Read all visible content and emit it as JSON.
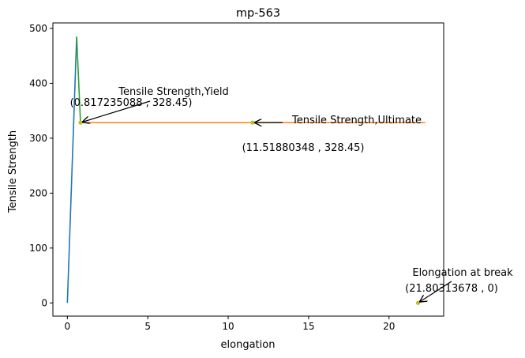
{
  "chart_data": {
    "type": "line",
    "title": "mp-563",
    "xlabel": "elongation",
    "ylabel": "Tensile Strength",
    "xlim": [
      -0.9,
      23.4
    ],
    "ylim": [
      -24,
      510
    ],
    "x_ticks": [
      0,
      5,
      10,
      15,
      20
    ],
    "x_tick_labels": [
      "0",
      "5",
      "10",
      "15",
      "20"
    ],
    "y_ticks": [
      0,
      100,
      200,
      300,
      400,
      500
    ],
    "y_tick_labels": [
      "0",
      "100",
      "200",
      "300",
      "400",
      "500"
    ],
    "grid": false,
    "series": [
      {
        "color": "#1f77b4",
        "x": [
          0,
          0.578
        ],
        "y": [
          0,
          485
        ]
      },
      {
        "color": "#ff7f0e",
        "x": [
          0.817235088,
          22.25
        ],
        "y": [
          328.45,
          328.45
        ]
      },
      {
        "color": "#2ca02c",
        "x": [
          0.578,
          0.817235088
        ],
        "y": [
          485,
          328.45
        ]
      }
    ],
    "points": [
      {
        "x": 0.817235088,
        "y": 328.45,
        "color": "#bcbd22"
      },
      {
        "x": 11.51880348,
        "y": 328.45,
        "color": "#bcbd22"
      },
      {
        "x": 21.80313678,
        "y": 0,
        "color": "#bcbd22"
      }
    ],
    "annotations": [
      {
        "label": "Tensile Strength,Yield",
        "value_label": "(0.817235088 , 328.45)",
        "x": 0.817235088,
        "y": 328.45
      },
      {
        "label": "Tensile Strength,Ultimate",
        "value_label": "(11.51880348 , 328.45)",
        "x": 11.51880348,
        "y": 328.45
      },
      {
        "label": "Elongation at break",
        "value_label": "(21.80313678 , 0)",
        "x": 21.80313678,
        "y": 0
      }
    ]
  }
}
